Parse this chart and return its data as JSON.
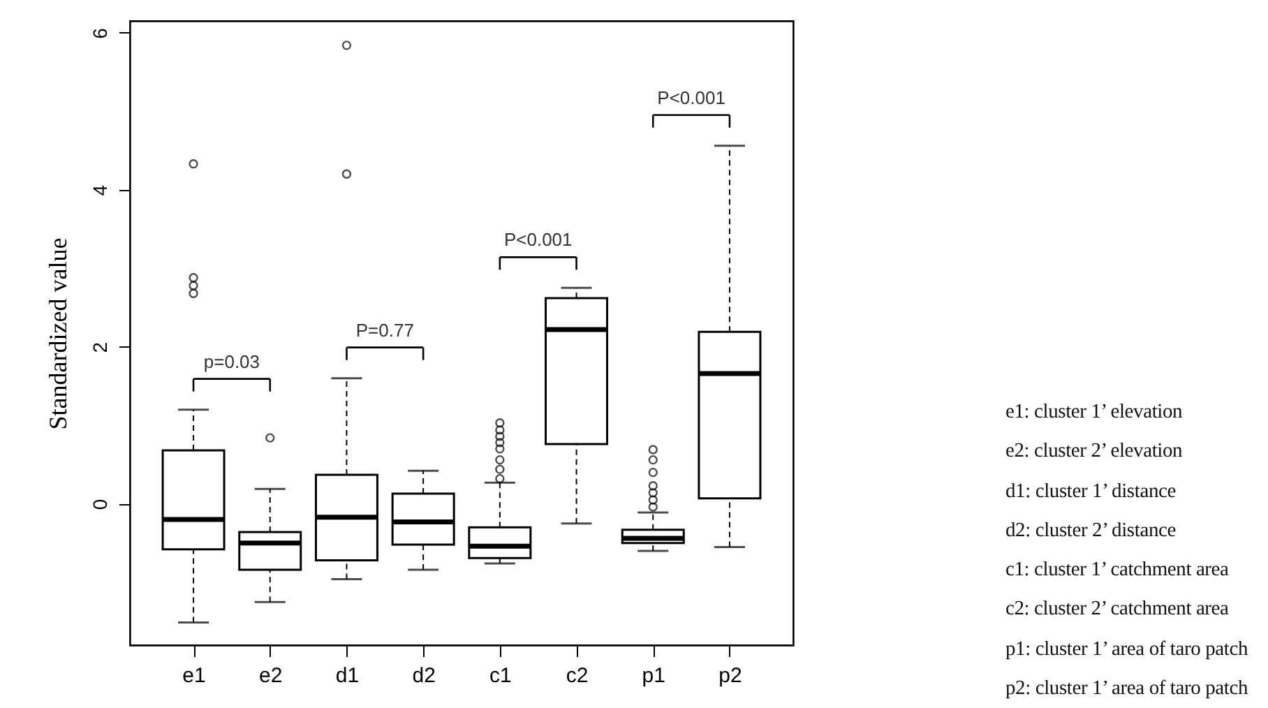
{
  "chart_data": {
    "type": "box",
    "ylabel": "Standardized value",
    "categories": [
      "e1",
      "e2",
      "d1",
      "d2",
      "c1",
      "c2",
      "p1",
      "p2"
    ],
    "boxes": [
      {
        "low": -1.51,
        "q1": -0.58,
        "median": -0.2,
        "q3": 0.68,
        "high": 1.2,
        "outliers": [
          4.33,
          2.88,
          2.78,
          2.68
        ]
      },
      {
        "low": -1.25,
        "q1": -0.84,
        "median": -0.5,
        "q3": -0.36,
        "high": 0.19,
        "outliers": [
          0.84
        ]
      },
      {
        "low": -0.96,
        "q1": -0.72,
        "median": -0.17,
        "q3": 0.37,
        "high": 1.6,
        "outliers": [
          5.84,
          4.2
        ]
      },
      {
        "low": -0.84,
        "q1": -0.52,
        "median": -0.23,
        "q3": 0.13,
        "high": 0.42
      },
      {
        "low": -0.76,
        "q1": -0.69,
        "median": -0.54,
        "q3": -0.3,
        "high": 0.27,
        "outliers": [
          1.03,
          0.94,
          0.86,
          0.78,
          0.7,
          0.56,
          0.44,
          0.32
        ]
      },
      {
        "low": -0.25,
        "q1": 0.76,
        "median": 2.22,
        "q3": 2.62,
        "high": 2.75
      },
      {
        "low": -0.6,
        "q1": -0.5,
        "median": -0.44,
        "q3": -0.33,
        "high": -0.11,
        "outliers": [
          0.69,
          0.56,
          0.4,
          0.23,
          0.14,
          0.05,
          -0.04
        ]
      },
      {
        "low": -0.55,
        "q1": 0.07,
        "median": 1.66,
        "q3": 2.19,
        "high": 4.56
      }
    ],
    "ylim": [
      -1.8,
      6.15
    ],
    "yticks": [
      0,
      2,
      4,
      6
    ],
    "annotations": [
      "p=0.03",
      "P=0.77",
      "P<0.001",
      "P<0.001",
      "e1: cluster 1’ elevation",
      "e2: cluster 2’ elevation",
      "d1: cluster 1’ distance",
      "d2: cluster 2’ distance",
      "c1: cluster 1’ catchment area",
      "c2: cluster 2’ catchment area",
      "p1: cluster 1’ area of taro patch",
      "p2: cluster 1’ area of taro patch"
    ]
  }
}
